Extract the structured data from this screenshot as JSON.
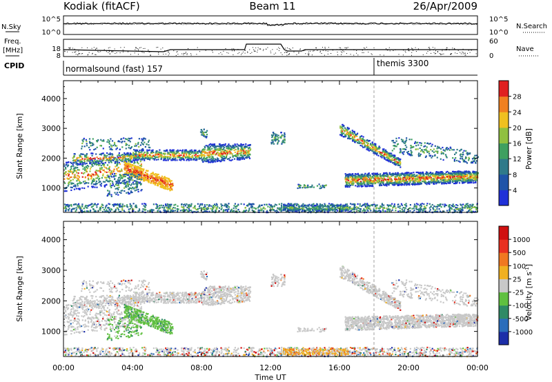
{
  "header": {
    "station": "Kodiak (fitACF)",
    "beam": "Beam 11",
    "date": "26/Apr/2009"
  },
  "noise_panel": {
    "left_label": "N.Sky",
    "right_label": "N.Search",
    "left_ticks": [
      "10^5",
      "10^0"
    ],
    "right_ticks": [
      "10^5",
      "10^0"
    ]
  },
  "freq_panel": {
    "left_label_1": "Freq.",
    "left_label_2": "[MHz]",
    "right_label": "Nave",
    "left_ticks": [
      "18",
      "8"
    ],
    "right_ticks": [
      "60",
      "0"
    ]
  },
  "cpid": {
    "label": "CPID",
    "modes": [
      {
        "name": "normalsound (fast) 157",
        "start_hour": 0
      },
      {
        "name": "themis 3300",
        "start_hour": 18
      }
    ]
  },
  "chart_data": {
    "type": "heatmap",
    "x_axis": {
      "label": "Time UT",
      "range_hours": [
        0,
        24
      ],
      "tick_labels": [
        "00:00",
        "04:00",
        "08:00",
        "12:00",
        "16:00",
        "20:00",
        "00:00"
      ]
    },
    "y_axis": {
      "label": "Slant Range [km]",
      "range": [
        180,
        4600
      ],
      "ticks": [
        1000,
        2000,
        3000,
        4000
      ]
    },
    "marker_hour": 18,
    "power_panel": {
      "colorbar_label": "Power [dB]",
      "colorbar_ticks": [
        "4",
        "8",
        "12",
        "16",
        "20",
        "24",
        "28"
      ],
      "scale_min": 0,
      "scale_max": 32,
      "colors": [
        "#2030d8",
        "#1f54a8",
        "#2f7a8a",
        "#3fa060",
        "#90c040",
        "#f0c020",
        "#f08020",
        "#e02020"
      ]
    },
    "velocity_panel": {
      "colorbar_label": "Velocity [m s^-1]",
      "colorbar_ticks": [
        "1000",
        "500",
        "100",
        "25",
        "-25",
        "-100",
        "-500",
        "-1000"
      ],
      "colors": [
        "#1c2ea8",
        "#2b6dbb",
        "#2f8a66",
        "#60c040",
        "#c8c8c8",
        "#f0b020",
        "#f07820",
        "#e83020",
        "#d01010"
      ]
    }
  }
}
